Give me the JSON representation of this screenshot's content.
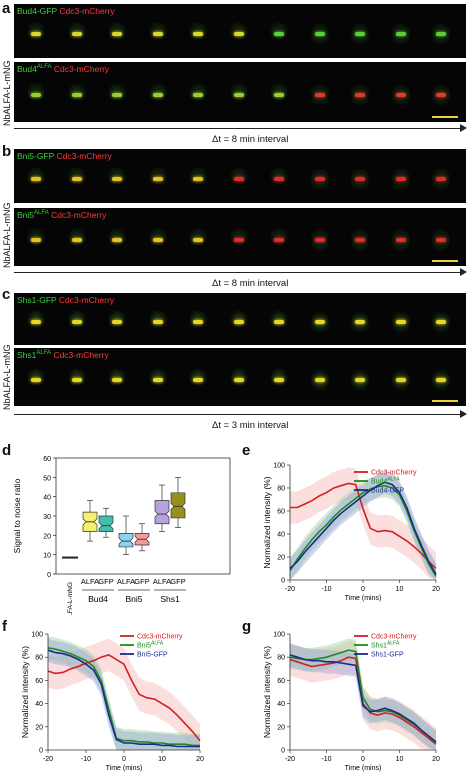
{
  "panels": {
    "a": {
      "letter": "a",
      "row1": {
        "green": "Bud4-GFP",
        "red": "Cdc3-mCherry"
      },
      "row2": {
        "green": "Bud4",
        "green_sup": "ALFA",
        "red": "Cdc3-mCherry"
      },
      "side_label": "NbALFA-L-mNG",
      "interval": "Δt = 8 min interval"
    },
    "b": {
      "letter": "b",
      "row1": {
        "green": "Bni5-GFP",
        "red": "Cdc3-mCherry"
      },
      "row2": {
        "green": "Bni5",
        "green_sup": "ALFA",
        "red": "Cdc3-mCherry"
      },
      "side_label": "NbALFA-L-mNG",
      "interval": "Δt = 8 min interval"
    },
    "c": {
      "letter": "c",
      "row1": {
        "green": "Shs1-GFP",
        "red": "Cdc3-mCherry"
      },
      "row2": {
        "green": "Shs1",
        "green_sup": "ALFA",
        "red": "Cdc3-mCherry"
      },
      "side_label": "NbALFA-L-mNG",
      "interval": "Δt = 3 min interval"
    },
    "d": {
      "letter": "d"
    },
    "e": {
      "letter": "e"
    },
    "f": {
      "letter": "f"
    },
    "g": {
      "letter": "g"
    }
  },
  "chart_data": [
    {
      "panel": "d",
      "type": "box",
      "ylabel": "Signal to noise ratio",
      "ylim": [
        0,
        60
      ],
      "yticks": [
        0,
        10,
        20,
        30,
        40,
        50,
        60
      ],
      "x_tick_labels": [
        "NbALFA-L-mNG",
        "ALFA",
        "GFP",
        "ALFA",
        "GFP",
        "ALFA",
        "GFP"
      ],
      "group_labels": [
        "Bud4",
        "Bni5",
        "Shs1"
      ],
      "boxes": [
        {
          "label": "NbALFA-L-mNG",
          "color": "#222222",
          "min": 8,
          "q1": 8,
          "median": 8.5,
          "q3": 9,
          "max": 9
        },
        {
          "label": "ALFA",
          "group": "Bud4",
          "color": "#f5f06e",
          "min": 17,
          "q1": 22,
          "median": 27,
          "q3": 32,
          "max": 38
        },
        {
          "label": "GFP",
          "group": "Bud4",
          "color": "#3fbfae",
          "min": 19,
          "q1": 22,
          "median": 25,
          "q3": 30,
          "max": 34
        },
        {
          "label": "ALFA",
          "group": "Bni5",
          "color": "#8ad3ee",
          "min": 10,
          "q1": 14,
          "median": 17,
          "q3": 21,
          "max": 30
        },
        {
          "label": "GFP",
          "group": "Bni5",
          "color": "#f29a9a",
          "min": 12,
          "q1": 15,
          "median": 18,
          "q3": 21,
          "max": 26
        },
        {
          "label": "ALFA",
          "group": "Shs1",
          "color": "#b7a2de",
          "min": 22,
          "q1": 26,
          "median": 31,
          "q3": 38,
          "max": 46
        },
        {
          "label": "GFP",
          "group": "Shs1",
          "color": "#9a8f1e",
          "min": 24,
          "q1": 29,
          "median": 35,
          "q3": 42,
          "max": 50
        }
      ]
    },
    {
      "panel": "e",
      "type": "line",
      "xlabel": "Time (mins)",
      "ylabel": "Normalized intensity (%)",
      "xlim": [
        -20,
        20
      ],
      "ylim": [
        0,
        100
      ],
      "xticks": [
        -20,
        -10,
        0,
        10,
        20
      ],
      "yticks": [
        0,
        20,
        40,
        60,
        80,
        100
      ],
      "x": [
        -20,
        -18,
        -16,
        -14,
        -12,
        -10,
        -8,
        -6,
        -4,
        -2,
        0,
        2,
        4,
        6,
        8,
        10,
        12,
        14,
        16,
        18,
        20
      ],
      "series": [
        {
          "name": "Cdc3-mCherry",
          "color": "#d42020",
          "band": "#f6b5b5",
          "values": [
            63,
            63,
            66,
            69,
            73,
            76,
            80,
            82,
            84,
            83,
            62,
            45,
            42,
            43,
            42,
            38,
            34,
            29,
            23,
            16,
            10
          ]
        },
        {
          "name": "Bud4",
          "name_sup": "ALFA",
          "color": "#1f8a1f",
          "band": "#9bd49b",
          "values": [
            8,
            18,
            27,
            35,
            42,
            48,
            55,
            61,
            66,
            71,
            76,
            79,
            81,
            82,
            80,
            74,
            60,
            43,
            28,
            14,
            3
          ]
        },
        {
          "name": "Bud4-GFP",
          "color": "#1b2a8f",
          "band": "#9aa3d6",
          "values": [
            10,
            16,
            24,
            31,
            38,
            45,
            52,
            58,
            63,
            68,
            73,
            78,
            82,
            85,
            83,
            76,
            63,
            45,
            30,
            16,
            5
          ]
        }
      ]
    },
    {
      "panel": "f",
      "type": "line",
      "xlabel": "Time (mins)",
      "ylabel": "Normalized intensity (%)",
      "xlim": [
        -20,
        20
      ],
      "ylim": [
        0,
        100
      ],
      "xticks": [
        -20,
        -10,
        0,
        10,
        20
      ],
      "yticks": [
        0,
        20,
        40,
        60,
        80,
        100
      ],
      "x": [
        -20,
        -18,
        -16,
        -14,
        -12,
        -10,
        -8,
        -6,
        -4,
        -2,
        0,
        2,
        4,
        6,
        8,
        10,
        12,
        14,
        16,
        18,
        20
      ],
      "series": [
        {
          "name": "Cdc3-mCherry",
          "color": "#d42020",
          "band": "#f6b5b5",
          "values": [
            68,
            66,
            67,
            70,
            72,
            75,
            77,
            80,
            82,
            78,
            74,
            60,
            48,
            45,
            44,
            40,
            36,
            30,
            23,
            16,
            8
          ]
        },
        {
          "name": "Bni5",
          "name_sup": "ALFA",
          "color": "#1f8a1f",
          "band": "#9bd49b",
          "values": [
            88,
            87,
            85,
            83,
            80,
            77,
            72,
            60,
            35,
            10,
            8,
            8,
            7,
            7,
            6,
            6,
            5,
            5,
            5,
            4,
            4
          ]
        },
        {
          "name": "Bni5-GFP",
          "color": "#1b2a8f",
          "band": "#9aa3d6",
          "values": [
            86,
            84,
            83,
            81,
            78,
            74,
            69,
            57,
            30,
            9,
            6,
            6,
            5,
            5,
            5,
            4,
            4,
            3,
            3,
            3,
            3
          ]
        }
      ]
    },
    {
      "panel": "g",
      "type": "line",
      "xlabel": "Time (mins)",
      "ylabel": "Normalized intensity (%)",
      "xlim": [
        -20,
        20
      ],
      "ylim": [
        0,
        100
      ],
      "xticks": [
        -20,
        -10,
        0,
        10,
        20
      ],
      "yticks": [
        0,
        20,
        40,
        60,
        80,
        100
      ],
      "x": [
        -20,
        -18,
        -16,
        -14,
        -12,
        -10,
        -8,
        -6,
        -4,
        -2,
        0,
        2,
        4,
        6,
        8,
        10,
        12,
        14,
        16,
        18,
        20
      ],
      "series": [
        {
          "name": "Cdc3-mCherry",
          "color": "#d42020",
          "band": "#f6b5b5",
          "values": [
            78,
            76,
            74,
            72,
            73,
            74,
            75,
            77,
            80,
            79,
            40,
            32,
            30,
            32,
            31,
            28,
            24,
            20,
            15,
            10,
            5
          ]
        },
        {
          "name": "Shs1",
          "name_sup": "ALFA",
          "color": "#1f8a1f",
          "band": "#9bd49b",
          "values": [
            80,
            79,
            78,
            78,
            79,
            80,
            82,
            84,
            86,
            85,
            45,
            35,
            33,
            34,
            33,
            30,
            26,
            22,
            17,
            12,
            6
          ]
        },
        {
          "name": "Shs1-GFP",
          "color": "#1b2a8f",
          "band": "#9aa3d6",
          "values": [
            82,
            80,
            78,
            77,
            77,
            76,
            76,
            75,
            74,
            73,
            38,
            33,
            34,
            36,
            34,
            31,
            27,
            23,
            17,
            12,
            7
          ]
        }
      ]
    }
  ]
}
